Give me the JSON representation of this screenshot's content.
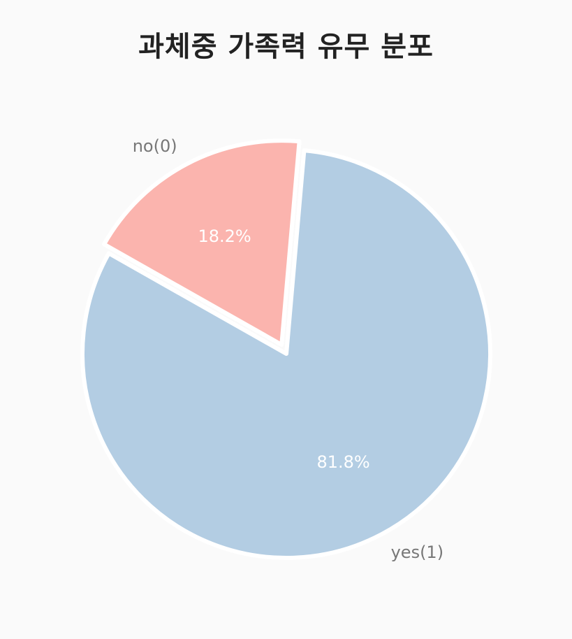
{
  "chart_data": {
    "type": "pie",
    "title": "과체중 가족력 유무 분포",
    "slices": [
      {
        "label": "no(0)",
        "value": 18.2,
        "pct_label": "18.2%",
        "color": "#fbb4ae"
      },
      {
        "label": "yes(1)",
        "value": 81.8,
        "pct_label": "81.8%",
        "color": "#b3cde3"
      }
    ],
    "explode": [
      0.05,
      0
    ],
    "legend": "none"
  }
}
